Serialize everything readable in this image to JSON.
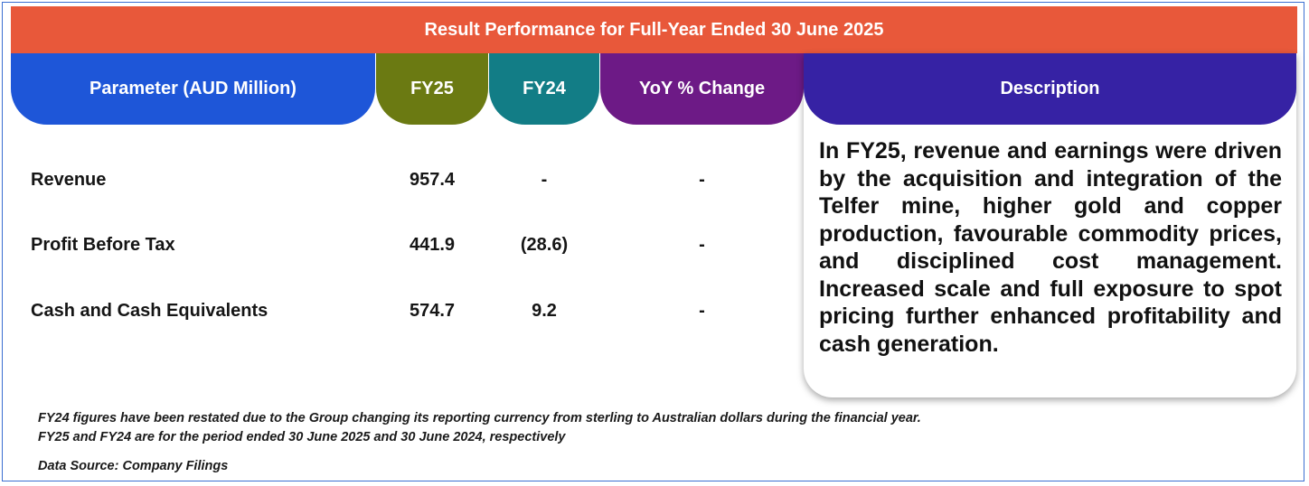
{
  "title": "Result Performance for Full-Year Ended 30 June 2025",
  "headers": {
    "parameter": "Parameter (AUD Million)",
    "fy25": "FY25",
    "fy24": "FY24",
    "yoy": "YoY % Change",
    "description": "Description"
  },
  "rows": [
    {
      "parameter": "Revenue",
      "fy25": "957.4",
      "fy24": "-",
      "yoy": "-"
    },
    {
      "parameter": "Profit Before Tax",
      "fy25": "441.9",
      "fy24": "(28.6)",
      "yoy": "-"
    },
    {
      "parameter": "Cash and Cash Equivalents",
      "fy25": "574.7",
      "fy24": "9.2",
      "yoy": "-"
    }
  ],
  "description": "In FY25, revenue and earnings were driven by the acquisition and integration of the Telfer mine, higher gold and copper production, favourable commodity prices, and disciplined cost management. Increased scale and full exposure to spot pricing further enhanced profitability and cash generation.",
  "footnotes": [
    "FY24 figures have been restated due to the Group changing its reporting currency from sterling to Australian dollars during the financial year.",
    "FY25 and FY24 are for the period ended 30 June 2025 and 30 June 2024, respectively"
  ],
  "source": "Data Source: Company Filings",
  "colors": {
    "title_bar": "#e8583a",
    "parameter_header": "#1e56d8",
    "fy25_header": "#6b7a12",
    "fy24_header": "#127d86",
    "yoy_header": "#6d1a86",
    "description_header": "#3622a4"
  }
}
